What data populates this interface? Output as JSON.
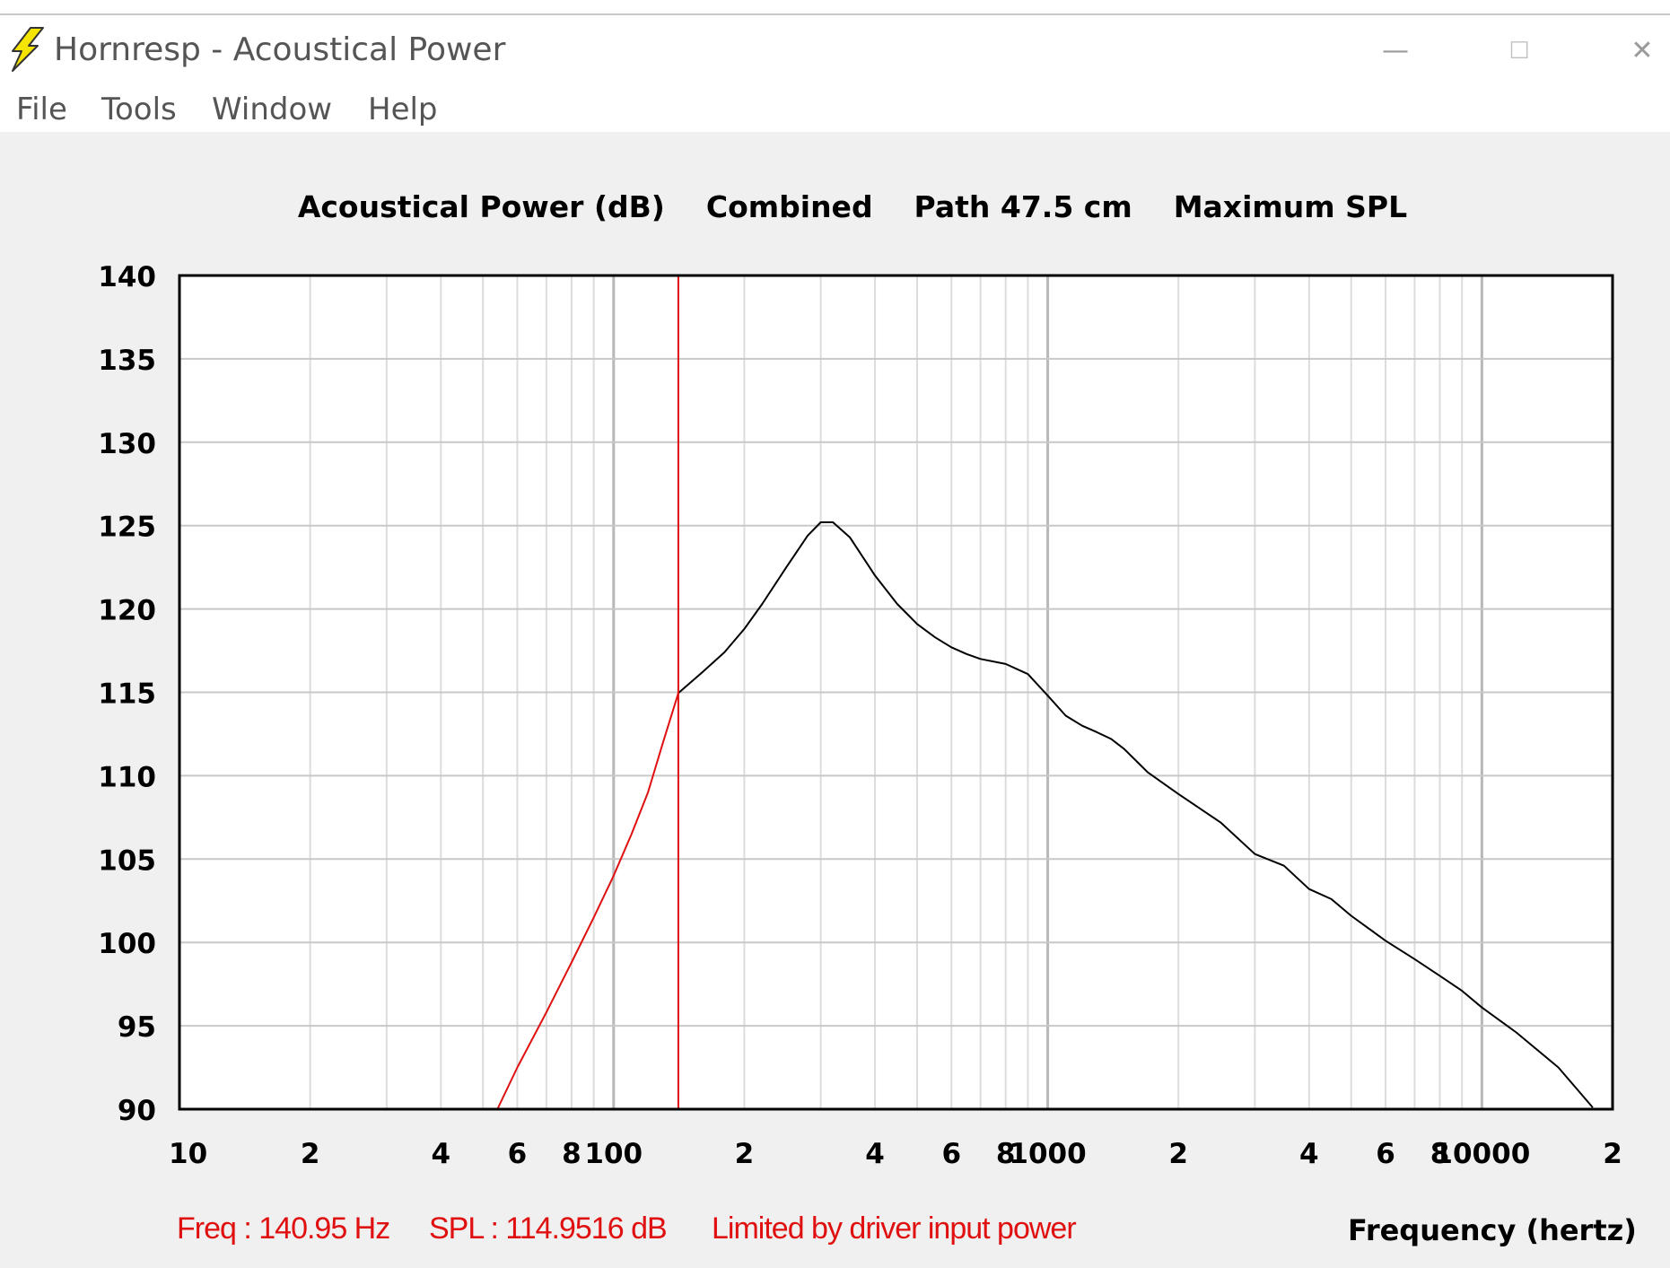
{
  "window": {
    "title": "Hornresp - Acoustical Power",
    "controls": {
      "minimize": "—",
      "maximize": "☐",
      "close": "✕"
    },
    "icon": "lightning-bolt-icon"
  },
  "menu": {
    "items": [
      "File",
      "Tools",
      "Window",
      "Help"
    ]
  },
  "colors": {
    "curve": "#000000",
    "limit_curve": "#e01010",
    "marker": "#e01010",
    "grid": "#c8c8c8",
    "status_text": "#e01010",
    "icon_fill": "#f5e400"
  },
  "chart_data": {
    "type": "line",
    "title_parts": [
      "Acoustical Power (dB)",
      "Combined",
      "Path 47.5 cm",
      "Maximum SPL"
    ],
    "xlabel": "Frequency (hertz)",
    "ylabel": "",
    "xscale": "log",
    "xlim": [
      10,
      20000
    ],
    "ylim": [
      90,
      140
    ],
    "yticks": [
      140,
      135,
      130,
      125,
      120,
      115,
      110,
      105,
      100,
      95,
      90
    ],
    "xticks": [
      {
        "value": 10,
        "label": "10"
      },
      {
        "value": 20,
        "label": "2"
      },
      {
        "value": 40,
        "label": "4"
      },
      {
        "value": 60,
        "label": "6"
      },
      {
        "value": 80,
        "label": "8"
      },
      {
        "value": 100,
        "label": "100"
      },
      {
        "value": 200,
        "label": "2"
      },
      {
        "value": 400,
        "label": "4"
      },
      {
        "value": 600,
        "label": "6"
      },
      {
        "value": 800,
        "label": "8"
      },
      {
        "value": 1000,
        "label": "1000"
      },
      {
        "value": 2000,
        "label": "2"
      },
      {
        "value": 4000,
        "label": "4"
      },
      {
        "value": 6000,
        "label": "6"
      },
      {
        "value": 8000,
        "label": "8"
      },
      {
        "value": 10000,
        "label": "10000"
      },
      {
        "value": 20000,
        "label": "2"
      }
    ],
    "grid": true,
    "series": [
      {
        "color": "#e01010",
        "x": [
          54,
          60,
          70,
          80,
          90,
          100,
          110,
          120,
          130,
          140.95
        ],
        "y": [
          90,
          92.5,
          95.8,
          98.8,
          101.5,
          104,
          106.5,
          109,
          112,
          114.95
        ]
      },
      {
        "color": "#000000",
        "x": [
          140.95,
          160,
          180,
          200,
          220,
          250,
          280,
          300,
          320,
          350,
          400,
          450,
          500,
          550,
          600,
          650,
          700,
          800,
          900,
          1000,
          1100,
          1200,
          1300,
          1400,
          1500,
          1700,
          2000,
          2500,
          3000,
          3500,
          4000,
          4500,
          5000,
          6000,
          7000,
          8000,
          9000,
          10000,
          12000,
          15000,
          18000
        ],
        "y": [
          114.95,
          116.2,
          117.4,
          118.8,
          120.3,
          122.5,
          124.4,
          125.2,
          125.2,
          124.3,
          122.0,
          120.3,
          119.1,
          118.3,
          117.7,
          117.3,
          117.0,
          116.7,
          116.1,
          114.8,
          113.6,
          113.0,
          112.6,
          112.2,
          111.6,
          110.2,
          108.9,
          107.2,
          105.3,
          104.6,
          103.2,
          102.6,
          101.6,
          100.1,
          99.0,
          98.0,
          97.1,
          96.1,
          94.6,
          92.5,
          90.1
        ]
      }
    ],
    "marker_x": 140.95
  },
  "status": {
    "freq": "Freq : 140.95 Hz",
    "spl": "SPL : 114.9516 dB",
    "limit": "Limited by driver input power"
  }
}
